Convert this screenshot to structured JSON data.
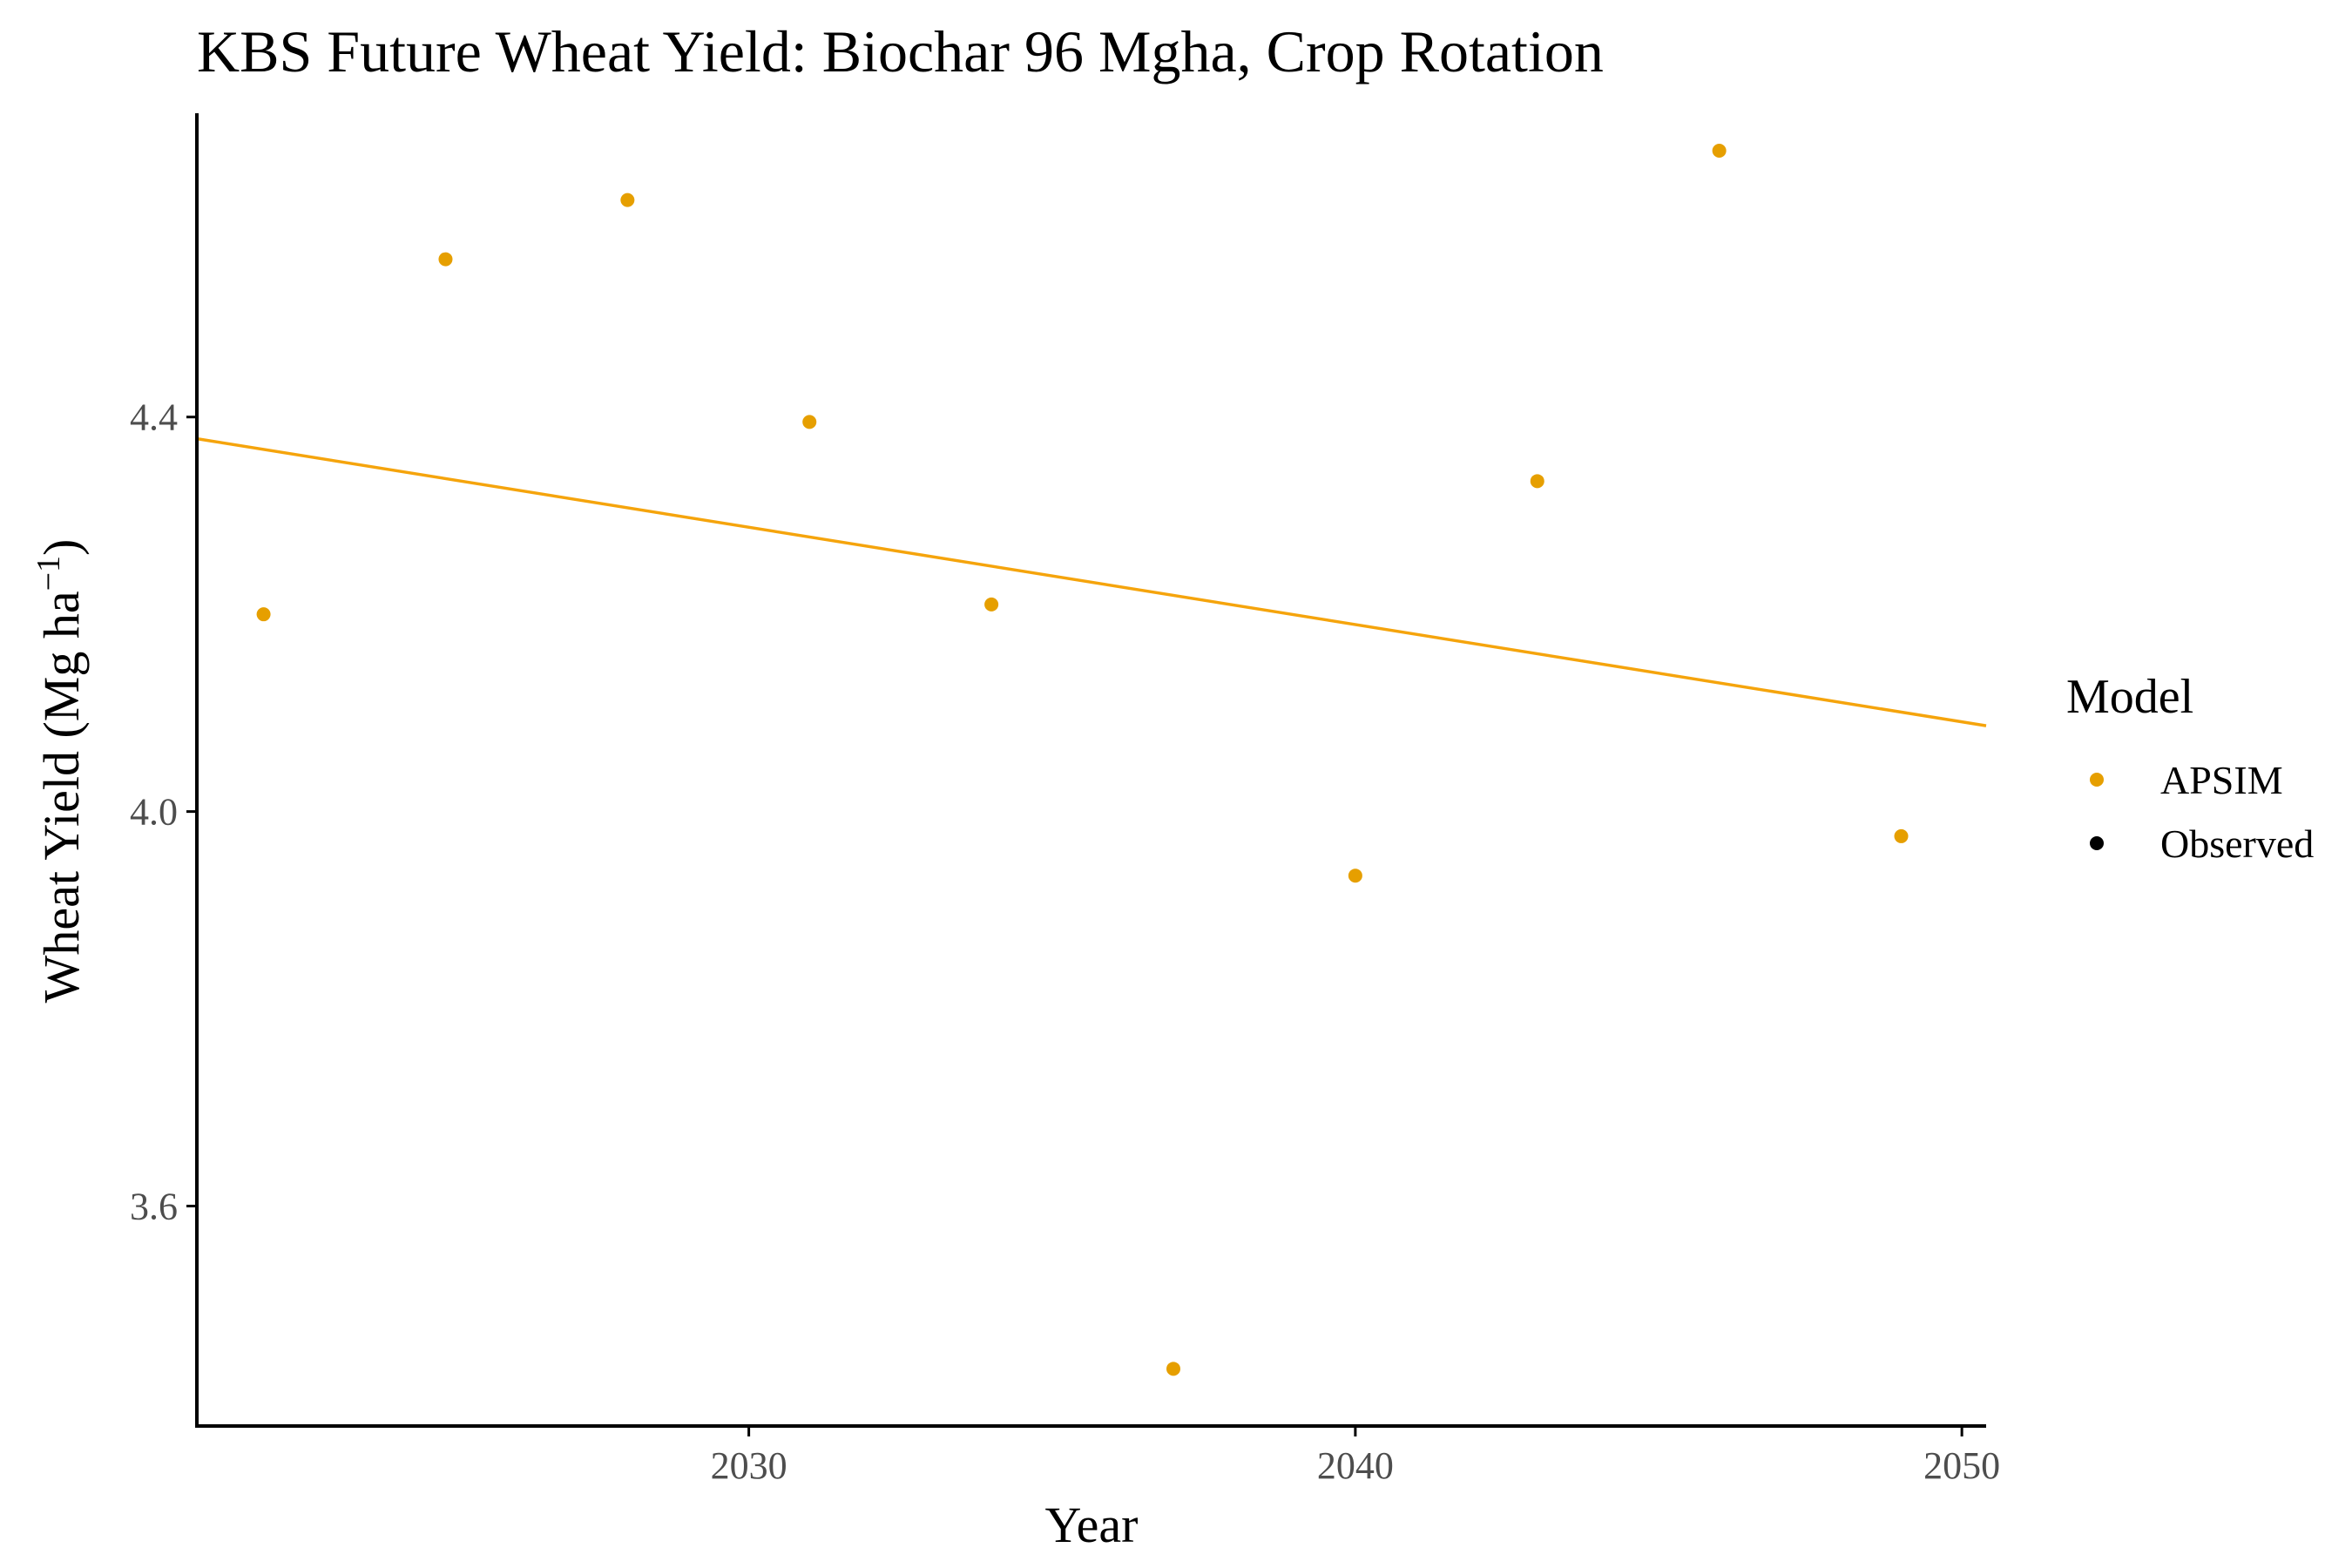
{
  "chart_data": {
    "type": "scatter",
    "title": "KBS Future Wheat Yield:  Biochar 96 Mgha, Crop Rotation",
    "xlabel": "Year",
    "ylabel": "Wheat Yield (Mg ha",
    "ylabel_superscript": "−1",
    "ylabel_close": ")",
    "xlim": [
      2020.9,
      2050.4
    ],
    "ylim": [
      3.377,
      4.708
    ],
    "x_ticks": [
      2030,
      2040,
      2050
    ],
    "x_tick_labels": [
      "2030",
      "2040",
      "2050"
    ],
    "y_ticks": [
      3.6,
      4.0,
      4.4
    ],
    "y_tick_labels": [
      "3.6",
      "4.0",
      "4.4"
    ],
    "grid": false,
    "legend": {
      "title": "Model",
      "position": "right",
      "entries": [
        {
          "label": "APSIM",
          "color": "#E69F00"
        },
        {
          "label": "Observed",
          "color": "#000000"
        }
      ]
    },
    "series": [
      {
        "name": "APSIM",
        "color": "#E69F00",
        "points": [
          {
            "x": 2022,
            "y": 4.2
          },
          {
            "x": 2025,
            "y": 4.56
          },
          {
            "x": 2028,
            "y": 4.62
          },
          {
            "x": 2031,
            "y": 4.395
          },
          {
            "x": 2034,
            "y": 4.21
          },
          {
            "x": 2037,
            "y": 3.435
          },
          {
            "x": 2040,
            "y": 3.935
          },
          {
            "x": 2043,
            "y": 4.335
          },
          {
            "x": 2046,
            "y": 4.67
          },
          {
            "x": 2049,
            "y": 3.975
          }
        ]
      },
      {
        "name": "Observed",
        "color": "#000000",
        "points": []
      }
    ],
    "trend_line": {
      "series": "APSIM",
      "color": "#F5A40C",
      "x": [
        2020.9,
        2050.4
      ],
      "y": [
        4.378,
        4.087
      ]
    }
  }
}
